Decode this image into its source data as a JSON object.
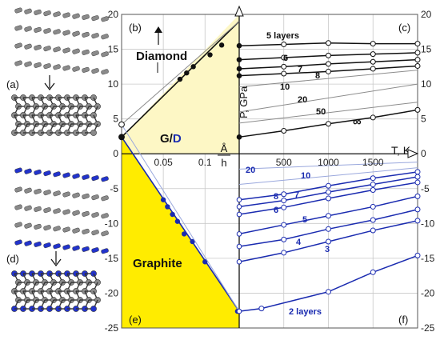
{
  "colors": {
    "grid": "#c8c8c8",
    "diamond_fill": "#fdf7c5",
    "graphite_fill": "#ffec00",
    "black": "#111111",
    "blue": "#1a2bb0",
    "gray": "#8c8c8c",
    "lightblue": "#9aa8dd",
    "atom_gray": "#8a8a8a",
    "atom_blue": "#2233cc"
  },
  "panel_labels": {
    "a": "(a)",
    "b": "(b)",
    "c": "(c)",
    "d": "(d)",
    "e": "(e)",
    "f": "(f)"
  },
  "text": {
    "diamond": "Diamond",
    "graphite": "Graphite",
    "gd_g": "G/",
    "gd_d": "D",
    "p_axis": "P, GPa",
    "t_axis": "T, K",
    "inv_h_num": "Å",
    "inv_h_den": "h"
  },
  "chart_data": [
    {
      "type": "line",
      "id": "left-phase-diagram",
      "xlabel": "Å/h",
      "ylabel": "P, GPa",
      "xlim": [
        0,
        0.141
      ],
      "ylim": [
        -25,
        20
      ],
      "x_ticks": [
        0.05,
        0.1
      ],
      "x_tick_labels": [
        "0.05",
        "0.1"
      ],
      "y_ticks": [
        -25,
        -20,
        -15,
        -10,
        -5,
        0,
        5,
        10,
        15,
        20
      ],
      "y_tick_labels": [
        "-25",
        "-20",
        "-15",
        "-10",
        "-5",
        "0",
        "5",
        "10",
        "15",
        "20"
      ],
      "regions": [
        "Diamond",
        "G/D",
        "Graphite"
      ],
      "series": [
        {
          "color": "black",
          "x": [
            0,
            0.141
          ],
          "y": [
            2.4,
            19
          ],
          "points": [
            [
              0.07,
              10.7
            ],
            [
              0.078,
              11.6
            ],
            [
              0.086,
              12.5
            ],
            [
              0.106,
              14.2
            ],
            [
              0.12,
              15.6
            ]
          ]
        },
        {
          "color": "blue",
          "x": [
            0,
            0.141
          ],
          "y": [
            2.4,
            -22.6
          ],
          "points": [
            [
              0.05,
              -6.6
            ],
            [
              0.055,
              -7.6
            ],
            [
              0.061,
              -8.7
            ],
            [
              0.067,
              -9.7
            ],
            [
              0.075,
              -11.5
            ],
            [
              0.085,
              -12.6
            ],
            [
              0.1,
              -15.5
            ],
            [
              0.139,
              -22.6
            ]
          ]
        },
        {
          "color": "gray",
          "x": [
            0,
            0.141
          ],
          "y": [
            4.2,
            19
          ]
        },
        {
          "color": "lightblue",
          "x": [
            0,
            0.141
          ],
          "y": [
            4.2,
            -22.6
          ]
        }
      ],
      "markers": [
        {
          "x": 0,
          "y": 4.2,
          "style": "open"
        },
        {
          "x": 0,
          "y": 2.4,
          "style": "filled"
        }
      ]
    },
    {
      "type": "line",
      "id": "right-pressure-temperature",
      "xlabel": "T, K",
      "ylabel": "P, GPa",
      "xlim": [
        0,
        2000
      ],
      "ylim": [
        -25,
        20
      ],
      "x_ticks": [
        500,
        1000,
        1500
      ],
      "x_tick_labels": [
        "500",
        "1000",
        "1500"
      ],
      "y_ticks": [
        -25,
        -20,
        -15,
        -10,
        -5,
        0,
        5,
        10,
        15,
        20
      ],
      "y_tick_labels": [
        "-25",
        "-20",
        "-15",
        "-10",
        "-5",
        "0",
        "5",
        "10",
        "15",
        "20"
      ],
      "series": [
        {
          "label": "5 layers",
          "color": "black",
          "x": [
            0,
            500,
            1000,
            1500,
            2000
          ],
          "y": [
            15.5,
            15.7,
            15.9,
            15.8,
            15.8
          ]
        },
        {
          "label": "6",
          "color": "black",
          "x": [
            0,
            500,
            1000,
            1500,
            2000
          ],
          "y": [
            13.5,
            13.8,
            14.1,
            14.3,
            14.5
          ]
        },
        {
          "label": "7",
          "color": "black",
          "x": [
            0,
            500,
            1000,
            1500,
            2000
          ],
          "y": [
            12.2,
            12.5,
            12.9,
            13.2,
            13.5
          ]
        },
        {
          "label": "8",
          "color": "black",
          "x": [
            0,
            500,
            1000,
            1500,
            2000
          ],
          "y": [
            11.2,
            11.5,
            11.8,
            12.2,
            12.6
          ]
        },
        {
          "label": "10",
          "color": "gray",
          "x": [
            0,
            2000
          ],
          "y": [
            9.6,
            12.0
          ]
        },
        {
          "label": "20",
          "color": "gray",
          "x": [
            0,
            2000
          ],
          "y": [
            6.0,
            10.0
          ]
        },
        {
          "label": "50",
          "color": "gray",
          "x": [
            0,
            2000
          ],
          "y": [
            4.4,
            7.4
          ]
        },
        {
          "label": "∞",
          "color": "black",
          "x": [
            0,
            500,
            1000,
            1500,
            2000
          ],
          "y": [
            2.4,
            3.3,
            4.3,
            5.2,
            6.3
          ]
        },
        {
          "label": "20",
          "color": "lightblue",
          "x": [
            0,
            2000
          ],
          "y": [
            -2.2,
            -1.2
          ]
        },
        {
          "label": "10",
          "color": "lightblue",
          "x": [
            0,
            2000
          ],
          "y": [
            -4.4,
            -2.0
          ]
        },
        {
          "label": "8",
          "color": "blue",
          "x": [
            0,
            500,
            1000,
            1500,
            2000
          ],
          "y": [
            -6.6,
            -5.8,
            -4.6,
            -3.5,
            -2.6
          ]
        },
        {
          "label": "7",
          "color": "blue",
          "x": [
            0,
            500,
            1000,
            1500,
            2000
          ],
          "y": [
            -7.6,
            -6.7,
            -5.5,
            -4.4,
            -3.3
          ]
        },
        {
          "label": "6",
          "color": "blue",
          "x": [
            0,
            500,
            1000,
            1500,
            2000
          ],
          "y": [
            -8.7,
            -7.7,
            -6.4,
            -5.2,
            -4.1
          ]
        },
        {
          "label": "5",
          "color": "blue",
          "x": [
            0,
            500,
            1000,
            1500,
            2000
          ],
          "y": [
            -11.5,
            -10.2,
            -8.9,
            -7.6,
            -6.1
          ]
        },
        {
          "label": "4",
          "color": "blue",
          "x": [
            0,
            500,
            1000,
            1500,
            2000
          ],
          "y": [
            -13.3,
            -12.3,
            -10.8,
            -9.5,
            -8.0
          ]
        },
        {
          "label": "3",
          "color": "blue",
          "x": [
            0,
            500,
            1000,
            1500,
            2000
          ],
          "y": [
            -15.5,
            -14.2,
            -12.6,
            -11.0,
            -9.6
          ]
        },
        {
          "label": "2 layers",
          "color": "blue",
          "x": [
            0,
            250,
            1000,
            1500,
            2000
          ],
          "y": [
            -22.6,
            -22.2,
            -19.8,
            -17.0,
            -14.6
          ]
        }
      ]
    }
  ]
}
